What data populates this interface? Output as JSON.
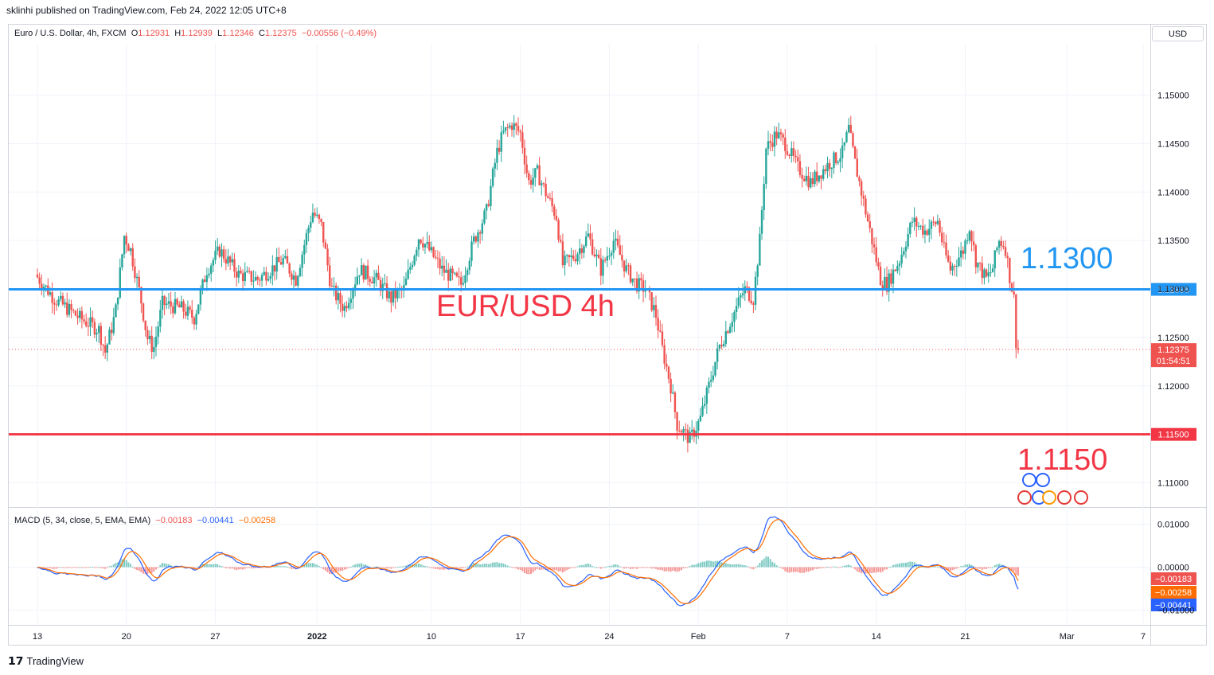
{
  "header": {
    "published": "sklinhi published on TradingView.com, Feb 24, 2022 12:05 UTC+8"
  },
  "legend": {
    "symbol": "Euro / U.S. Dollar, 4h, FXCM",
    "o_label": "O",
    "o_value": "1.12931",
    "h_label": "H",
    "h_value": "1.12939",
    "l_label": "L",
    "l_value": "1.12346",
    "c_label": "C",
    "c_value": "1.12375",
    "change": "−0.00556 (−0.49%)"
  },
  "currency_button": "USD",
  "macd_legend": {
    "title": "MACD (5, 34, close, 5, EMA, EMA)",
    "hist": "−0.00183",
    "macd": "−0.00441",
    "signal": "−0.00258"
  },
  "footer": {
    "brand": "TradingView"
  },
  "colors": {
    "up": "#26a69a",
    "down": "#ef5350",
    "resistance": "#2196f3",
    "support": "#f23645",
    "macd_line": "#2962ff",
    "signal_line": "#ff6d00"
  },
  "chart_data": {
    "type": "candlestick",
    "annotations": {
      "title": "EUR/USD 4h",
      "resistance_label": "1.1300",
      "support_label": "1.1150"
    },
    "price_axis": {
      "ticks": [
        "1.15000",
        "1.14500",
        "1.14000",
        "1.13500",
        "1.13000",
        "1.12500",
        "1.12000",
        "1.11000"
      ],
      "tick_values": [
        1.15,
        1.145,
        1.14,
        1.135,
        1.13,
        1.125,
        1.12,
        1.11
      ],
      "range": [
        1.1075,
        1.1553
      ]
    },
    "horizontal_lines": [
      {
        "name": "resistance",
        "value": 1.12996,
        "label": "1.12996"
      },
      {
        "name": "support",
        "value": 1.115,
        "label": "1.11500"
      }
    ],
    "last_price": {
      "value": 1.12375,
      "label": "1.12375",
      "countdown": "01:54:51"
    },
    "time_axis": {
      "labels": [
        "13",
        "20",
        "27",
        "2022",
        "10",
        "17",
        "24",
        "Feb",
        "7",
        "14",
        "21",
        "Mar",
        "7"
      ],
      "label_days": [
        0,
        7,
        14,
        22,
        31,
        38,
        45,
        52,
        59,
        66,
        73,
        81,
        87
      ]
    },
    "price_path": [
      [
        0,
        1.1315
      ],
      [
        1.5,
        1.129
      ],
      [
        3.5,
        1.127
      ],
      [
        5,
        1.1258
      ],
      [
        5.5,
        1.1235
      ],
      [
        6.3,
        1.1275
      ],
      [
        7,
        1.1355
      ],
      [
        7.5,
        1.134
      ],
      [
        8.3,
        1.129
      ],
      [
        8.8,
        1.125
      ],
      [
        9.3,
        1.1238
      ],
      [
        10,
        1.1285
      ],
      [
        11.5,
        1.128
      ],
      [
        12.5,
        1.127
      ],
      [
        13.5,
        1.132
      ],
      [
        14.5,
        1.134
      ],
      [
        16,
        1.1315
      ],
      [
        17.5,
        1.131
      ],
      [
        18.5,
        1.132
      ],
      [
        19.5,
        1.133
      ],
      [
        20.5,
        1.131
      ],
      [
        21.8,
        1.138
      ],
      [
        22.5,
        1.1365
      ],
      [
        23.3,
        1.13
      ],
      [
        24.3,
        1.128
      ],
      [
        25.5,
        1.132
      ],
      [
        26.8,
        1.131
      ],
      [
        28,
        1.129
      ],
      [
        29,
        1.13
      ],
      [
        30.2,
        1.1355
      ],
      [
        31,
        1.134
      ],
      [
        32,
        1.132
      ],
      [
        33.5,
        1.1305
      ],
      [
        34.5,
        1.135
      ],
      [
        35.5,
        1.138
      ],
      [
        36.3,
        1.144
      ],
      [
        36.8,
        1.146
      ],
      [
        37.5,
        1.147
      ],
      [
        38.2,
        1.146
      ],
      [
        38.8,
        1.141
      ],
      [
        39.5,
        1.142
      ],
      [
        40.3,
        1.1395
      ],
      [
        41,
        1.1375
      ],
      [
        41.5,
        1.1325
      ],
      [
        42.5,
        1.1335
      ],
      [
        43.5,
        1.1355
      ],
      [
        44.5,
        1.132
      ],
      [
        45.5,
        1.135
      ],
      [
        46.5,
        1.132
      ],
      [
        47.3,
        1.1305
      ],
      [
        48,
        1.13
      ],
      [
        48.8,
        1.1275
      ],
      [
        49.3,
        1.124
      ],
      [
        50,
        1.12
      ],
      [
        50.5,
        1.116
      ],
      [
        51.5,
        1.1145
      ],
      [
        52.3,
        1.1165
      ],
      [
        53,
        1.12
      ],
      [
        53.8,
        1.124
      ],
      [
        54.8,
        1.127
      ],
      [
        55.8,
        1.13
      ],
      [
        56.5,
        1.129
      ],
      [
        57,
        1.135
      ],
      [
        57.5,
        1.1445
      ],
      [
        58.3,
        1.146
      ],
      [
        59,
        1.145
      ],
      [
        60,
        1.1425
      ],
      [
        61,
        1.141
      ],
      [
        62.5,
        1.143
      ],
      [
        63.5,
        1.144
      ],
      [
        64,
        1.1465
      ],
      [
        64.5,
        1.143
      ],
      [
        65,
        1.14
      ],
      [
        66,
        1.134
      ],
      [
        66.5,
        1.131
      ],
      [
        67,
        1.1305
      ],
      [
        68,
        1.133
      ],
      [
        69,
        1.137
      ],
      [
        70,
        1.136
      ],
      [
        71,
        1.137
      ],
      [
        71.5,
        1.134
      ],
      [
        72,
        1.132
      ],
      [
        73,
        1.134
      ],
      [
        73.5,
        1.1365
      ],
      [
        74,
        1.133
      ],
      [
        74.8,
        1.131
      ],
      [
        75.3,
        1.132
      ],
      [
        75.8,
        1.135
      ],
      [
        76.3,
        1.1345
      ],
      [
        76.7,
        1.131
      ],
      [
        77,
        1.129
      ],
      [
        77.2,
        1.12375
      ]
    ]
  }
}
